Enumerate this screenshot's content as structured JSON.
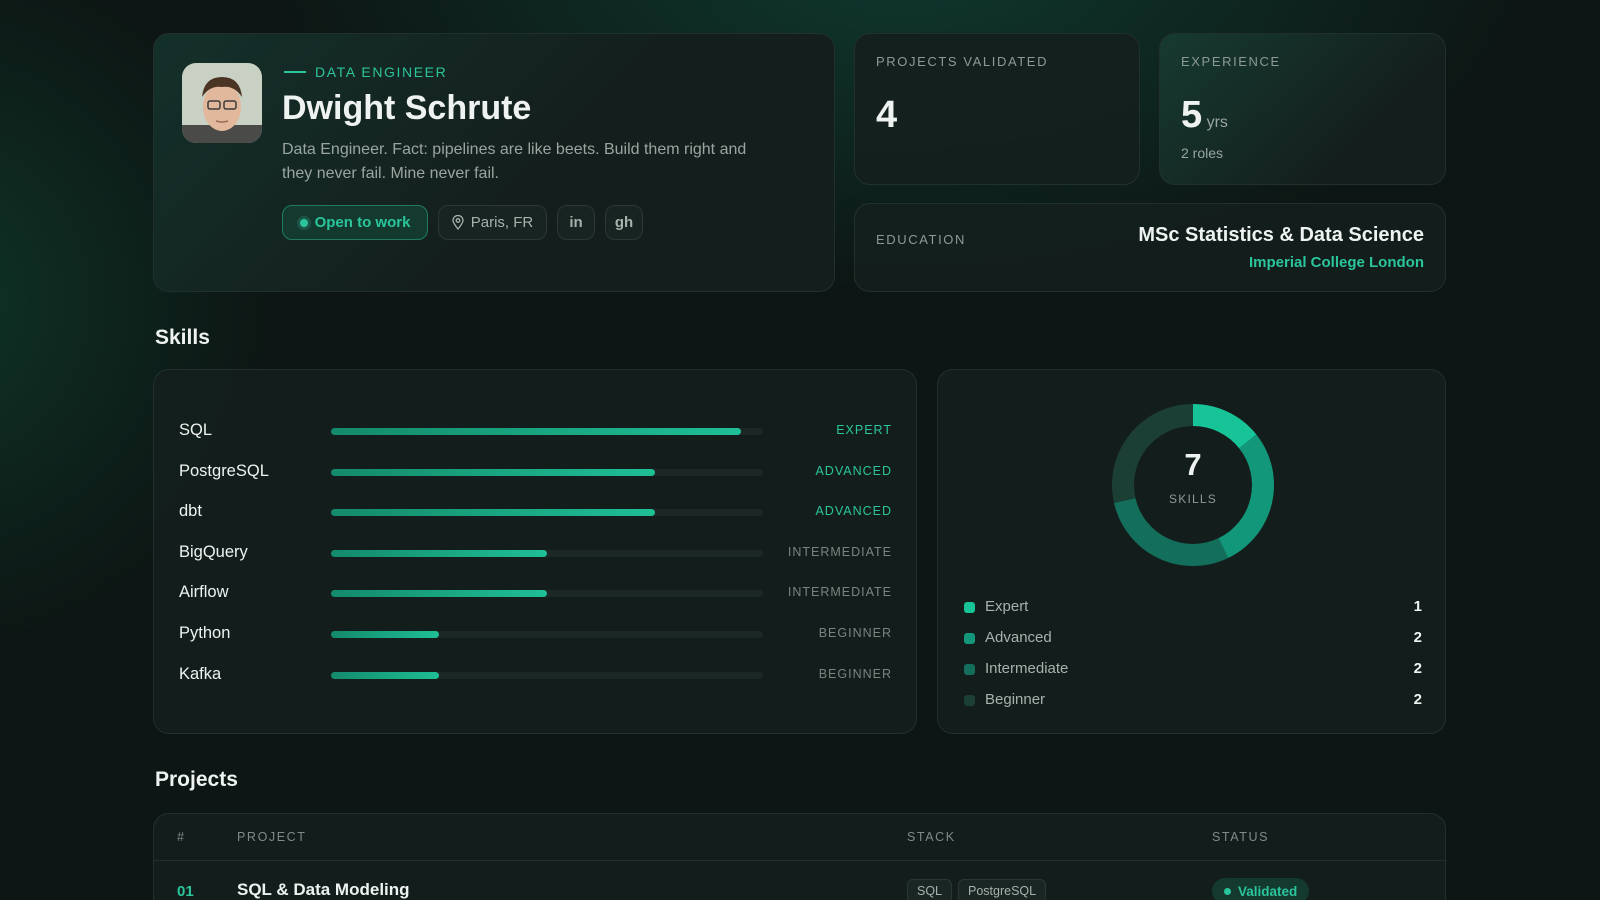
{
  "profile": {
    "role": "DATA ENGINEER",
    "name": "Dwight Schrute",
    "bio": "Data Engineer. Fact: pipelines are like beets. Build them right and they never fail. Mine never fail.",
    "badges": {
      "status": "Open to work",
      "location": "Paris, FR",
      "linkedin": "in",
      "github": "gh"
    }
  },
  "stats": {
    "projects": {
      "label": "PROJECTS VALIDATED",
      "value": 4
    },
    "experience": {
      "label": "EXPERIENCE",
      "value": 5,
      "unit": "yrs",
      "detail": "2 roles"
    },
    "education": {
      "label": "EDUCATION",
      "degree": "MSc Statistics & Data Science",
      "school": "Imperial College London"
    }
  },
  "skills": {
    "title": "Skills",
    "items": [
      {
        "name": "SQL",
        "level": "EXPERT",
        "percent": 95,
        "color": "#2bc59b"
      },
      {
        "name": "PostgreSQL",
        "level": "ADVANCED",
        "percent": 75,
        "color": "#2bc59b"
      },
      {
        "name": "dbt",
        "level": "ADVANCED",
        "percent": 75,
        "color": "#2bc59b"
      },
      {
        "name": "BigQuery",
        "level": "INTERMEDIATE",
        "percent": 50,
        "color": "#77857f"
      },
      {
        "name": "Airflow",
        "level": "INTERMEDIATE",
        "percent": 50,
        "color": "#77857f"
      },
      {
        "name": "Python",
        "level": "BEGINNER",
        "percent": 25,
        "color": "#77857f"
      },
      {
        "name": "Kafka",
        "level": "BEGINNER",
        "percent": 25,
        "color": "#77857f"
      }
    ]
  },
  "skill_summary": {
    "total": 7,
    "total_label": "SKILLS",
    "legend": [
      {
        "name": "Expert",
        "count": 1,
        "color": "#17c497"
      },
      {
        "name": "Advanced",
        "count": 2,
        "color": "#13977a"
      },
      {
        "name": "Intermediate",
        "count": 2,
        "color": "#136e5b"
      },
      {
        "name": "Beginner",
        "count": 2,
        "color": "#1b3e35"
      }
    ]
  },
  "projects": {
    "title": "Projects",
    "columns": [
      "#",
      "PROJECT",
      "STACK",
      "STATUS"
    ],
    "rows": [
      {
        "number": "01",
        "name": "SQL & Data Modeling",
        "stack": [
          "SQL",
          "PostgreSQL"
        ],
        "status": "Validated"
      }
    ]
  }
}
